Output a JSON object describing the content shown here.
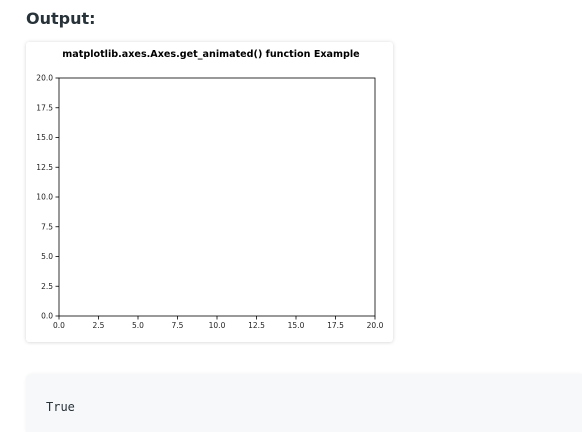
{
  "heading": "Output:",
  "chart_data": {
    "type": "line",
    "title": "matplotlib.axes.Axes.get_animated() function Example",
    "xlabel": "",
    "ylabel": "",
    "xlim": [
      0,
      20
    ],
    "ylim": [
      0,
      20
    ],
    "xticks": [
      "0.0",
      "2.5",
      "5.0",
      "7.5",
      "10.0",
      "12.5",
      "15.0",
      "17.5",
      "20.0"
    ],
    "yticks": [
      "0.0",
      "2.5",
      "5.0",
      "7.5",
      "10.0",
      "12.5",
      "15.0",
      "17.5",
      "20.0"
    ],
    "grid": false,
    "series": []
  },
  "output": {
    "text": "True"
  },
  "colors": {
    "axes": "#000000",
    "tick_text": "#222222",
    "code_background": "#f7f8f9",
    "heading": "#273239"
  }
}
